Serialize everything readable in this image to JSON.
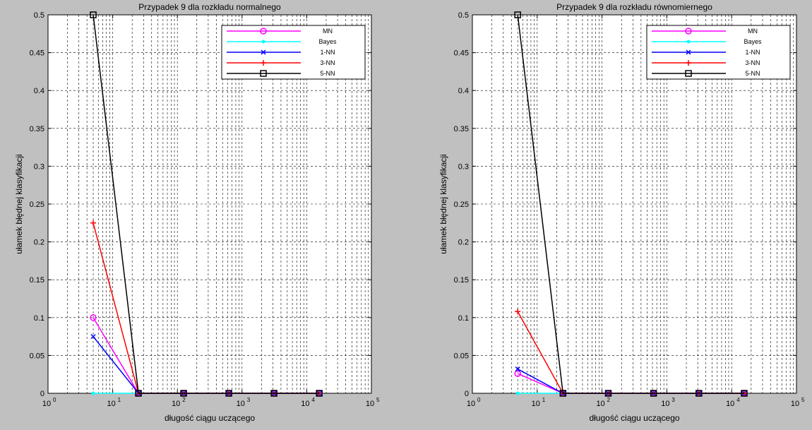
{
  "chart_data": [
    {
      "type": "line",
      "title": "Przypadek 9 dla rozkładu normalnego",
      "xlabel": "długość ciągu uczącego",
      "ylabel": "ułamek błędnej klasyfikacji",
      "xscale": "log",
      "xlim": [
        1,
        100000
      ],
      "ylim": [
        0,
        0.5
      ],
      "xticks": [
        {
          "base": "10",
          "exp": "0",
          "value": 1
        },
        {
          "base": "10",
          "exp": "1",
          "value": 10
        },
        {
          "base": "10",
          "exp": "2",
          "value": 100
        },
        {
          "base": "10",
          "exp": "3",
          "value": 1000
        },
        {
          "base": "10",
          "exp": "4",
          "value": 10000
        },
        {
          "base": "10",
          "exp": "5",
          "value": 100000
        }
      ],
      "yticks": [
        "0",
        "0.05",
        "0.1",
        "0.15",
        "0.2",
        "0.25",
        "0.3",
        "0.35",
        "0.4",
        "0.45",
        "0.5"
      ],
      "grid": true,
      "legend_position": "top-right",
      "x": [
        5,
        25,
        125,
        625,
        3125,
        15625
      ],
      "series": [
        {
          "name": "MN",
          "color": "#ff00ff",
          "marker": "circle",
          "values": [
            0.1,
            0,
            0,
            0,
            0,
            0
          ]
        },
        {
          "name": "Bayes",
          "color": "#00ffff",
          "marker": "point",
          "values": [
            0,
            0,
            0,
            0,
            0,
            0
          ]
        },
        {
          "name": "1-NN",
          "color": "#0000ff",
          "marker": "x",
          "values": [
            0.075,
            0,
            0,
            0,
            0,
            0
          ]
        },
        {
          "name": "3-NN",
          "color": "#ff0000",
          "marker": "plus",
          "values": [
            0.225,
            0,
            0,
            0,
            0,
            0
          ]
        },
        {
          "name": "5-NN",
          "color": "#000000",
          "marker": "square",
          "values": [
            0.5,
            0,
            0,
            0,
            0,
            0
          ]
        }
      ]
    },
    {
      "type": "line",
      "title": "Przypadek 9 dla rozkładu równomiernego",
      "xlabel": "długość ciągu uczącego",
      "ylabel": "ułamek błędnej klasyfikacji",
      "xscale": "log",
      "xlim": [
        1,
        100000
      ],
      "ylim": [
        0,
        0.5
      ],
      "xticks": [
        {
          "base": "10",
          "exp": "0",
          "value": 1
        },
        {
          "base": "10",
          "exp": "1",
          "value": 10
        },
        {
          "base": "10",
          "exp": "2",
          "value": 100
        },
        {
          "base": "10",
          "exp": "3",
          "value": 1000
        },
        {
          "base": "10",
          "exp": "4",
          "value": 10000
        },
        {
          "base": "10",
          "exp": "5",
          "value": 100000
        }
      ],
      "yticks": [
        "0",
        "0.05",
        "0.1",
        "0.15",
        "0.2",
        "0.25",
        "0.3",
        "0.35",
        "0.4",
        "0.45",
        "0.5"
      ],
      "grid": true,
      "legend_position": "top-right",
      "x": [
        5,
        25,
        125,
        625,
        3125,
        15625
      ],
      "series": [
        {
          "name": "MN",
          "color": "#ff00ff",
          "marker": "circle",
          "values": [
            0.026,
            0,
            0,
            0,
            0,
            0
          ]
        },
        {
          "name": "Bayes",
          "color": "#00ffff",
          "marker": "point",
          "values": [
            0,
            0,
            0,
            0,
            0,
            0
          ]
        },
        {
          "name": "1-NN",
          "color": "#0000ff",
          "marker": "x",
          "values": [
            0.032,
            0,
            0,
            0,
            0,
            0
          ]
        },
        {
          "name": "3-NN",
          "color": "#ff0000",
          "marker": "plus",
          "values": [
            0.108,
            0,
            0,
            0,
            0,
            0
          ]
        },
        {
          "name": "5-NN",
          "color": "#000000",
          "marker": "square",
          "values": [
            0.5,
            0,
            0,
            0,
            0,
            0
          ]
        }
      ]
    }
  ]
}
